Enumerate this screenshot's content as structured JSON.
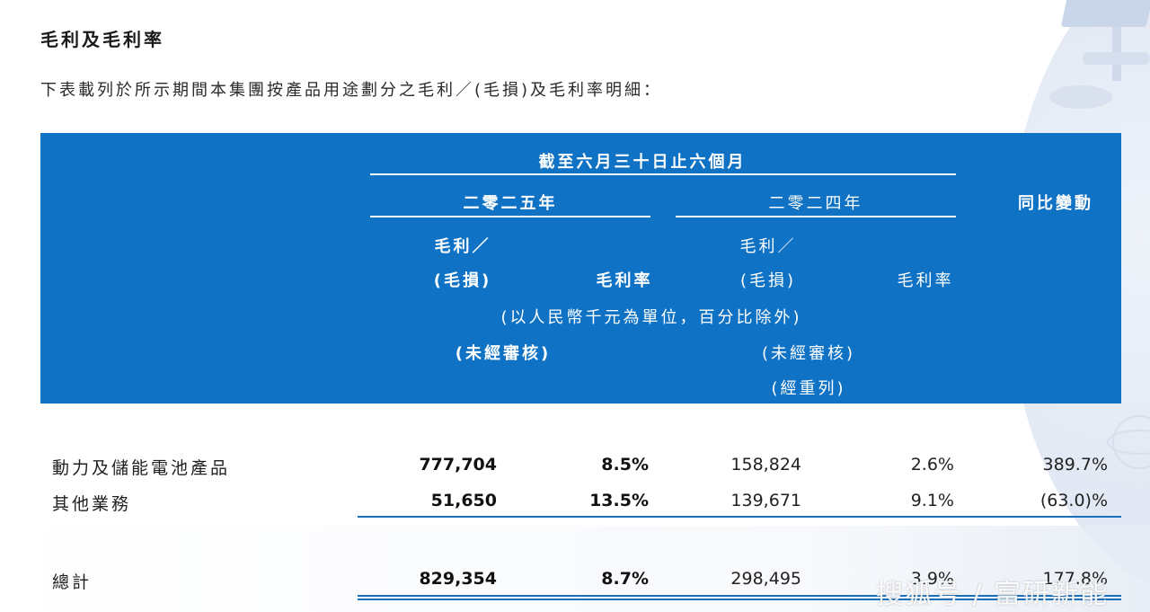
{
  "section_title": "毛利及毛利率",
  "intro": "下表載列於所示期間本集團按產品用途劃分之毛利／(毛損)及毛利率明細：",
  "header": {
    "period": "截至六月三十日止六個月",
    "year_2025": "二零二五年",
    "year_2024": "二零二四年",
    "yoy": "同比變動",
    "gp_line1": "毛利／",
    "gp_line2": "(毛損)",
    "margin": "毛利率",
    "unit_note": "(以人民幣千元為單位，百分比除外)",
    "unaudited": "(未經審核)",
    "restated": "(經重列)"
  },
  "rows": [
    {
      "label": "動力及儲能電池產品",
      "gp_2025": "777,704",
      "margin_2025": "8.5%",
      "gp_2024": "158,824",
      "margin_2024": "2.6%",
      "yoy": "389.7%"
    },
    {
      "label": "其他業務",
      "gp_2025": "51,650",
      "margin_2025": "13.5%",
      "gp_2024": "139,671",
      "margin_2024": "9.1%",
      "yoy": "(63.0)%"
    }
  ],
  "total": {
    "label": "總計",
    "gp_2025": "829,354",
    "margin_2025": "8.7%",
    "gp_2024": "298,495",
    "margin_2024": "3.9%",
    "yoy": "177.8%"
  },
  "watermark": "搜狐号 / 富研新能",
  "colors": {
    "header_band": "#0f72c4",
    "rule": "#1a6fb8"
  }
}
